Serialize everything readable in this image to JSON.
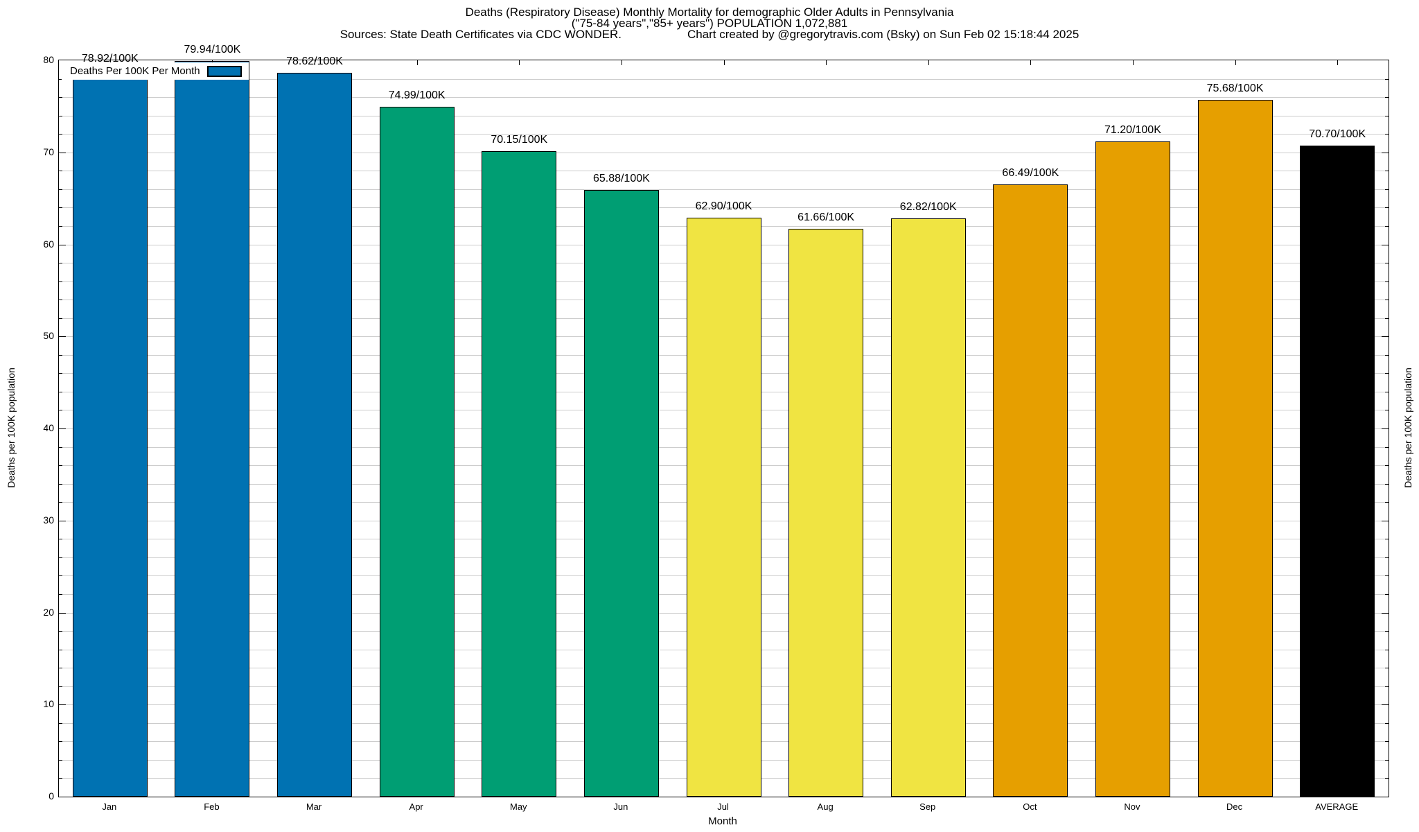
{
  "title": {
    "line1": "Deaths (Respiratory Disease) Monthly Mortality for demographic Older Adults in Pennsylvania",
    "line2": "(\"75-84 years\",\"85+ years\") POPULATION 1,072,881",
    "sources": "Sources: State Death Certificates via CDC WONDER.",
    "credit": "Chart created by @gregorytravis.com (Bsky) on Sun Feb 02 15:18:44 2025"
  },
  "legend": {
    "label": "Deaths Per 100K Per Month",
    "swatch_color": "#0072B2"
  },
  "axes": {
    "y_label": "Deaths per 100K population",
    "y2_label": "Deaths per 100K population",
    "x_label": "Month",
    "y_ticks": [
      0,
      10,
      20,
      30,
      40,
      50,
      60,
      70,
      80
    ],
    "minor_tick_step": 2
  },
  "chart_data": {
    "type": "bar",
    "title": "Deaths (Respiratory Disease) Monthly Mortality for demographic Older Adults in Pennsylvania",
    "subtitle": "(\"75-84 years\",\"85+ years\") POPULATION 1,072,881",
    "xlabel": "Month",
    "ylabel": "Deaths per 100K population",
    "y2label": "Deaths per 100K population",
    "ylim": [
      0,
      80
    ],
    "grid": true,
    "grid_step": 2,
    "legend_label": "Deaths Per 100K Per Month",
    "legend_position": "top-left",
    "categories": [
      "Jan",
      "Feb",
      "Mar",
      "Apr",
      "May",
      "Jun",
      "Jul",
      "Aug",
      "Sep",
      "Oct",
      "Nov",
      "Dec",
      "AVERAGE"
    ],
    "values": [
      78.92,
      79.94,
      78.62,
      74.99,
      70.15,
      65.88,
      62.9,
      61.66,
      62.82,
      66.49,
      71.2,
      75.68,
      70.7
    ],
    "value_labels": [
      "78.92/100K",
      "79.94/100K",
      "78.62/100K",
      "74.99/100K",
      "70.15/100K",
      "65.88/100K",
      "62.90/100K",
      "61.66/100K",
      "62.82/100K",
      "66.49/100K",
      "71.20/100K",
      "75.68/100K",
      "70.70/100K"
    ],
    "bar_colors": [
      "#0072B2",
      "#0072B2",
      "#0072B2",
      "#009E73",
      "#009E73",
      "#009E73",
      "#F0E442",
      "#F0E442",
      "#F0E442",
      "#E69F00",
      "#E69F00",
      "#E69F00",
      "#000000"
    ]
  },
  "colors": {
    "background": "#ffffff",
    "axis": "#000000",
    "grid": "#cccccc",
    "blue": "#0072B2",
    "green": "#009E73",
    "yellow": "#F0E442",
    "orange": "#E69F00",
    "average_black": "#000000"
  }
}
